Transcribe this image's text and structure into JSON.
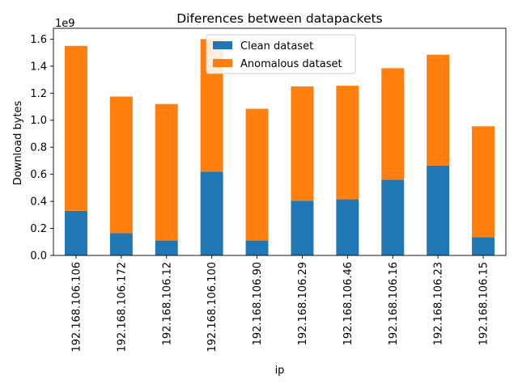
{
  "chart_data": {
    "type": "bar",
    "stacked": true,
    "title": "Diferences between datapackets",
    "xlabel": "ip",
    "ylabel": "Download bytes",
    "y_offset_label": "1e9",
    "ylim": [
      0,
      1.68
    ],
    "y_ticks": [
      "0.0",
      "0.2",
      "0.4",
      "0.6",
      "0.8",
      "1.0",
      "1.2",
      "1.4",
      "1.6"
    ],
    "y_scale": 1000000000,
    "categories": [
      "192.168.106.106",
      "192.168.106.172",
      "192.168.106.12",
      "192.168.106.100",
      "192.168.106.90",
      "192.168.106.29",
      "192.168.106.46",
      "192.168.106.16",
      "192.168.106.23",
      "192.168.106.15"
    ],
    "series": [
      {
        "name": "Clean dataset",
        "color": "#1f77b4",
        "values": [
          0.33,
          0.165,
          0.11,
          0.62,
          0.11,
          0.405,
          0.415,
          0.56,
          0.665,
          0.135
        ]
      },
      {
        "name": "Anomalous dataset",
        "color": "#ff7f0e",
        "values": [
          1.22,
          1.01,
          1.01,
          0.98,
          0.975,
          0.845,
          0.84,
          0.825,
          0.82,
          0.82
        ]
      }
    ],
    "grid": false,
    "legend_position": "upper-center"
  }
}
